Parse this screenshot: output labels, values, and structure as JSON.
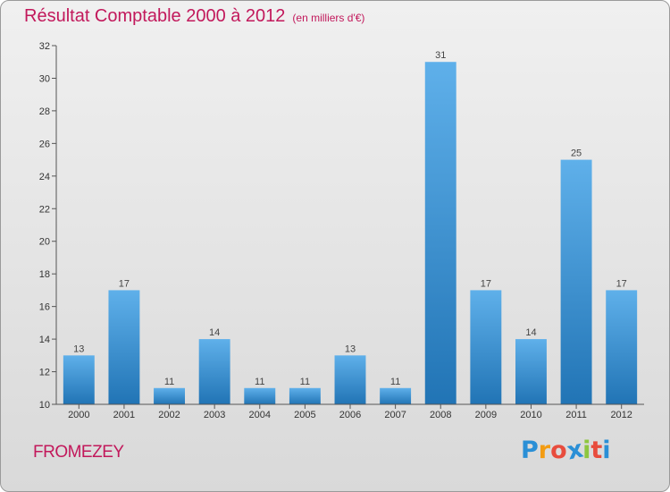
{
  "chart_data": {
    "type": "bar",
    "title": "Résultat Comptable 2000 à 2012",
    "subtitle": "(en milliers d'€)",
    "categories": [
      "2000",
      "2001",
      "2002",
      "2003",
      "2004",
      "2005",
      "2006",
      "2007",
      "2008",
      "2009",
      "2010",
      "2011",
      "2012"
    ],
    "values": [
      13,
      17,
      11,
      14,
      11,
      11,
      13,
      11,
      31,
      17,
      14,
      25,
      17
    ],
    "ylim": [
      10,
      32
    ],
    "yticks": [
      10,
      12,
      14,
      16,
      18,
      20,
      22,
      24,
      26,
      28,
      30,
      32
    ],
    "xlabel": "",
    "ylabel": "",
    "grid": false,
    "legend": "none"
  },
  "footer": {
    "commune": "FROMEZEY",
    "brand": [
      "P",
      "r",
      "o",
      "x",
      "i",
      "t",
      "i"
    ]
  },
  "colors": {
    "title": "#c2185b",
    "bar_top": "#5fb0ea",
    "bar_bottom": "#2174b5",
    "axis": "#555555",
    "brand": [
      "#2a8fd6",
      "#f39c12",
      "#e84c3d",
      "#2a8fd6",
      "#8dc63f",
      "#e84c3d",
      "#2a8fd6"
    ]
  }
}
